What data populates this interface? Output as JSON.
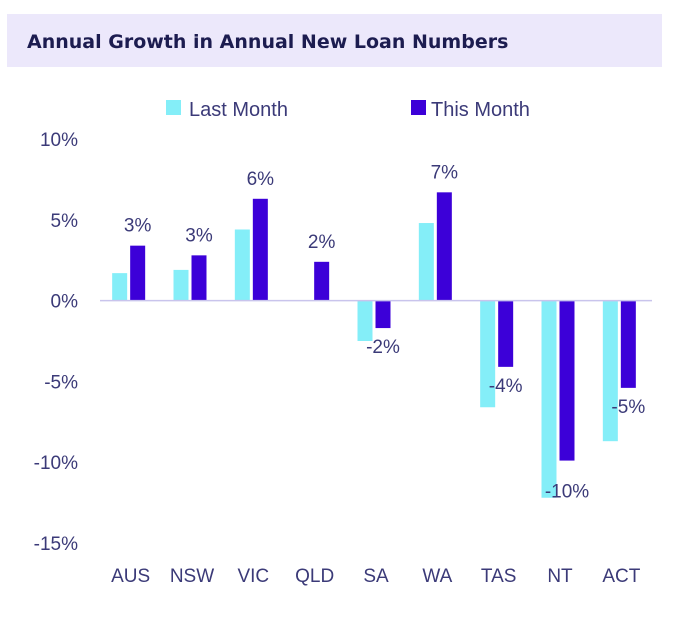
{
  "chart_data": {
    "type": "bar",
    "title": "Annual Growth in Annual New Loan Numbers",
    "categories": [
      "AUS",
      "NSW",
      "VIC",
      "QLD",
      "SA",
      "WA",
      "TAS",
      "NT",
      "ACT"
    ],
    "series": [
      {
        "name": "Last Month",
        "color": "#84eef8",
        "values": [
          1.7,
          1.9,
          4.4,
          0.0,
          -2.5,
          4.8,
          -6.6,
          -12.2,
          -8.7
        ]
      },
      {
        "name": "This Month",
        "color": "#3c00d8",
        "values": [
          3.4,
          2.8,
          6.3,
          2.4,
          -1.7,
          6.7,
          -4.1,
          -9.9,
          -5.4
        ]
      }
    ],
    "data_labels": {
      "series": "This Month",
      "labels": [
        "3%",
        "3%",
        "6%",
        "2%",
        "-2%",
        "7%",
        "-4%",
        "-10%",
        "-5%"
      ]
    },
    "ylim": [
      -15,
      10
    ],
    "yticks": [
      10,
      5,
      0,
      -5,
      -10,
      -15
    ],
    "ytick_labels": [
      "10%",
      "5%",
      "0%",
      "-5%",
      "-10%",
      "-15%"
    ],
    "grid": false,
    "legend_position": "top",
    "xlabel": "",
    "ylabel": ""
  }
}
